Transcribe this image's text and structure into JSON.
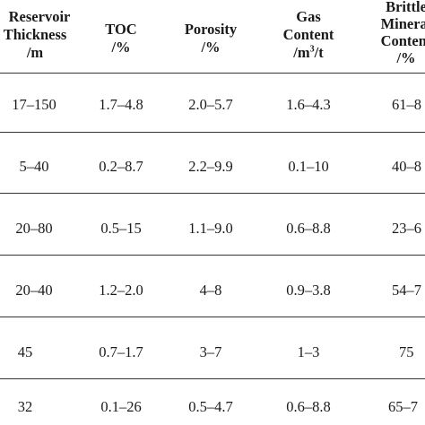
{
  "table": {
    "headers": [
      {
        "lines": [
          "Reservoir",
          "Thickness",
          "/m"
        ]
      },
      {
        "lines": [
          "TOC",
          "/%"
        ]
      },
      {
        "lines": [
          "Porosity",
          "/%"
        ]
      },
      {
        "lines": [
          "Gas",
          "Content",
          "/m³/t"
        ]
      },
      {
        "lines": [
          "Brittle",
          "Mineral",
          "Content",
          "/%"
        ]
      }
    ],
    "rows": [
      [
        "17–150",
        "1.7–4.8",
        "2.0–5.7",
        "1.6–4.3",
        "61–8"
      ],
      [
        "5–40",
        "0.2–8.7",
        "2.2–9.9",
        "0.1–10",
        "40–8"
      ],
      [
        "20–80",
        "0.5–15",
        "1.1–9.0",
        "0.6–8.8",
        "23–6"
      ],
      [
        "20–40",
        "1.2–2.0",
        "4–8",
        "0.9–3.8",
        "54–7"
      ],
      [
        "45",
        "0.7–1.7",
        "3–7",
        "1–3",
        "75"
      ],
      [
        "32",
        "0.1–26",
        "0.5–4.7",
        "0.6–8.8",
        "65–7"
      ]
    ]
  }
}
